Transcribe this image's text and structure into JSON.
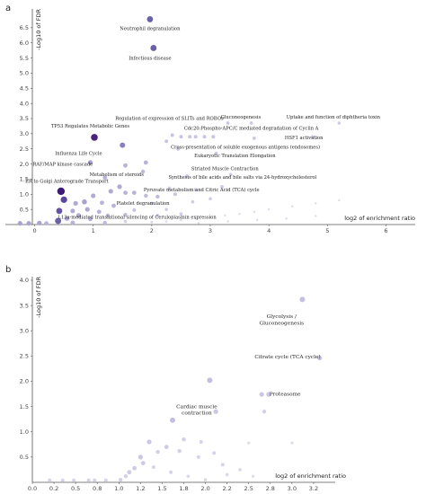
{
  "chart_data": [
    {
      "panel": "a",
      "type": "scatter",
      "ylabel": "-Log10 of FDR",
      "xlabel": "log2 of enrichment ratio",
      "xlim": [
        -0.5,
        6.5
      ],
      "ylim": [
        0,
        7.0
      ],
      "xticks": [
        "0",
        "1",
        "2",
        "3",
        "4",
        "5",
        "6"
      ],
      "yticks": [
        "0.5",
        "1.0",
        "1.5",
        "2.0",
        "2.5",
        "3.0",
        "3.5",
        "4.0",
        "4.5",
        "5.0",
        "5.5",
        "6.0",
        "6.5"
      ],
      "annotations": [
        {
          "text": "Neutrophil degranulation",
          "x": 1.97,
          "y": 6.42
        },
        {
          "text": "Infectious disease",
          "x": 1.97,
          "y": 5.45
        },
        {
          "text": "Regulation of expression of SLITs and ROBOs",
          "x": 2.3,
          "y": 3.45
        },
        {
          "text": "Gluconeogenesis",
          "x": 3.52,
          "y": 3.5
        },
        {
          "text": "Uptake and function of diphtheria toxin",
          "x": 5.1,
          "y": 3.5
        },
        {
          "text": "TP53 Regulates Metabolic Genes",
          "x": 0.95,
          "y": 3.2
        },
        {
          "text": "Cdc20:Phospho-APC/C mediated degradation of Cyclin A",
          "x": 3.7,
          "y": 3.13
        },
        {
          "text": "HSF1 activation",
          "x": 4.6,
          "y": 2.82
        },
        {
          "text": "Influenza Life Cycle",
          "x": 0.75,
          "y": 2.3
        },
        {
          "text": "Cross-presentation of soluble exogenous antigens (endosomes)",
          "x": 3.6,
          "y": 2.5
        },
        {
          "text": "Eukaryotic Translation Elongation",
          "x": 3.42,
          "y": 2.22
        },
        {
          "text": "RAF/MAP kinase cascade",
          "x": 0.48,
          "y": 1.95
        },
        {
          "text": "Striated Muscle Contraction",
          "x": 3.25,
          "y": 1.8
        },
        {
          "text": "Metabolism of steroids",
          "x": 1.4,
          "y": 1.6
        },
        {
          "text": "Synthesis of bile acids and bile salts via 24-hydroxycholesterol",
          "x": 3.55,
          "y": 1.52
        },
        {
          "text": "ER to Golgi Anterograde Transport",
          "x": 0.55,
          "y": 1.38
        },
        {
          "text": "Pyruvate metabolism and Citric Acid (TCA) cycle",
          "x": 2.85,
          "y": 1.1
        },
        {
          "text": "Platelet degranulation",
          "x": 1.85,
          "y": 0.65
        },
        {
          "text": "L13a-mediated translational silencing of Ceruloplasmin expression",
          "x": 1.75,
          "y": 0.2
        }
      ],
      "points": [
        {
          "x": 1.97,
          "y": 6.78,
          "r": 3.4,
          "c": "#6a62a8"
        },
        {
          "x": 2.03,
          "y": 5.83,
          "r": 3.4,
          "c": "#6a62a8"
        },
        {
          "x": 1.02,
          "y": 2.88,
          "r": 3.8,
          "c": "#4a237c"
        },
        {
          "x": 1.5,
          "y": 2.62,
          "r": 3.0,
          "c": "#8a80bd"
        },
        {
          "x": 0.45,
          "y": 1.1,
          "r": 4.2,
          "c": "#3c1c73"
        },
        {
          "x": 0.5,
          "y": 0.82,
          "r": 3.6,
          "c": "#5b4799"
        },
        {
          "x": 0.42,
          "y": 0.45,
          "r": 3.4,
          "c": "#6652a4"
        },
        {
          "x": 0.4,
          "y": 0.12,
          "r": 3.4,
          "c": "#6a62a8"
        },
        {
          "x": 0.08,
          "y": 0.05,
          "r": 2.6,
          "c": "#aaa4d0"
        },
        {
          "x": 0.95,
          "y": 2.05,
          "r": 2.6,
          "c": "#aaa4d0"
        },
        {
          "x": 1.55,
          "y": 1.95,
          "r": 2.4,
          "c": "#b8b3d8"
        },
        {
          "x": 1.9,
          "y": 2.05,
          "r": 2.4,
          "c": "#b8b3d8"
        },
        {
          "x": 1.85,
          "y": 1.75,
          "r": 2.2,
          "c": "#c0bbdc"
        },
        {
          "x": 1.2,
          "y": 1.55,
          "r": 2.4,
          "c": "#b8b3d8"
        },
        {
          "x": 1.45,
          "y": 1.25,
          "r": 2.6,
          "c": "#b0aad4"
        },
        {
          "x": 1.3,
          "y": 1.1,
          "r": 2.6,
          "c": "#b0aad4"
        },
        {
          "x": 1.55,
          "y": 1.05,
          "r": 2.4,
          "c": "#b8b3d8"
        },
        {
          "x": 1.7,
          "y": 1.05,
          "r": 2.4,
          "c": "#b8b3d8"
        },
        {
          "x": 1.9,
          "y": 0.95,
          "r": 2.2,
          "c": "#c0bbdc"
        },
        {
          "x": 2.1,
          "y": 0.92,
          "r": 2.2,
          "c": "#c0bbdc"
        },
        {
          "x": 2.4,
          "y": 1.0,
          "r": 2.0,
          "c": "#c8c4e2"
        },
        {
          "x": 1.0,
          "y": 0.95,
          "r": 2.6,
          "c": "#b0aad4"
        },
        {
          "x": 0.85,
          "y": 0.75,
          "r": 2.8,
          "c": "#a8a2cf"
        },
        {
          "x": 0.7,
          "y": 0.7,
          "r": 2.6,
          "c": "#b0aad4"
        },
        {
          "x": 1.15,
          "y": 0.72,
          "r": 2.4,
          "c": "#b8b3d8"
        },
        {
          "x": 1.35,
          "y": 0.62,
          "r": 2.4,
          "c": "#b8b3d8"
        },
        {
          "x": 0.9,
          "y": 0.5,
          "r": 2.6,
          "c": "#b0aad4"
        },
        {
          "x": 0.65,
          "y": 0.45,
          "r": 2.6,
          "c": "#b0aad4"
        },
        {
          "x": 1.1,
          "y": 0.42,
          "r": 2.4,
          "c": "#b8b3d8"
        },
        {
          "x": 0.75,
          "y": 0.3,
          "r": 2.6,
          "c": "#b0aad4"
        },
        {
          "x": 1.25,
          "y": 0.3,
          "r": 2.2,
          "c": "#c0bbdc"
        },
        {
          "x": 1.55,
          "y": 0.32,
          "r": 2.2,
          "c": "#c0bbdc"
        },
        {
          "x": 0.55,
          "y": 0.2,
          "r": 2.6,
          "c": "#b0aad4"
        },
        {
          "x": 0.95,
          "y": 0.18,
          "r": 2.4,
          "c": "#b8b3d8"
        },
        {
          "x": -0.25,
          "y": 0.04,
          "r": 2.6,
          "c": "#aaa4d0"
        },
        {
          "x": -0.1,
          "y": 0.04,
          "r": 2.6,
          "c": "#aaa4d0"
        },
        {
          "x": 0.2,
          "y": 0.04,
          "r": 2.4,
          "c": "#b8b3d8"
        },
        {
          "x": 0.65,
          "y": 0.06,
          "r": 2.4,
          "c": "#b8b3d8"
        },
        {
          "x": 1.2,
          "y": 0.06,
          "r": 2.2,
          "c": "#c0bbdc"
        },
        {
          "x": 2.25,
          "y": 2.75,
          "r": 2.0,
          "c": "#c8c4e2"
        },
        {
          "x": 2.35,
          "y": 2.95,
          "r": 2.0,
          "c": "#c8c4e2"
        },
        {
          "x": 2.5,
          "y": 2.9,
          "r": 2.0,
          "c": "#c8c4e2"
        },
        {
          "x": 2.65,
          "y": 2.9,
          "r": 2.0,
          "c": "#c8c4e2"
        },
        {
          "x": 2.75,
          "y": 2.9,
          "r": 2.0,
          "c": "#c8c4e2"
        },
        {
          "x": 2.9,
          "y": 2.9,
          "r": 2.0,
          "c": "#c8c4e2"
        },
        {
          "x": 3.05,
          "y": 2.9,
          "r": 2.0,
          "c": "#c8c4e2"
        },
        {
          "x": 3.3,
          "y": 3.35,
          "r": 1.9,
          "c": "#ccc8e4"
        },
        {
          "x": 3.7,
          "y": 3.35,
          "r": 1.9,
          "c": "#ccc8e4"
        },
        {
          "x": 5.2,
          "y": 3.35,
          "r": 1.8,
          "c": "#d0cce6"
        },
        {
          "x": 4.75,
          "y": 2.9,
          "r": 1.8,
          "c": "#d0cce6"
        },
        {
          "x": 3.75,
          "y": 2.85,
          "r": 1.9,
          "c": "#ccc8e4"
        },
        {
          "x": 2.45,
          "y": 2.5,
          "r": 2.0,
          "c": "#c8c4e2"
        },
        {
          "x": 3.1,
          "y": 2.35,
          "r": 1.9,
          "c": "#ccc8e4"
        },
        {
          "x": 3.35,
          "y": 1.65,
          "r": 1.9,
          "c": "#ccc8e4"
        },
        {
          "x": 2.6,
          "y": 1.6,
          "r": 1.9,
          "c": "#ccc8e4"
        },
        {
          "x": 2.3,
          "y": 1.2,
          "r": 1.9,
          "c": "#ccc8e4"
        },
        {
          "x": 2.75,
          "y": 1.15,
          "r": 1.9,
          "c": "#ccc8e4"
        },
        {
          "x": 3.2,
          "y": 1.25,
          "r": 1.9,
          "c": "#ccc8e4"
        },
        {
          "x": 2.0,
          "y": 0.7,
          "r": 1.9,
          "c": "#ccc8e4"
        },
        {
          "x": 2.7,
          "y": 0.75,
          "r": 1.8,
          "c": "#d0cce6"
        },
        {
          "x": 3.0,
          "y": 0.85,
          "r": 1.8,
          "c": "#d0cce6"
        },
        {
          "x": 2.25,
          "y": 0.5,
          "r": 1.8,
          "c": "#d0cce6"
        },
        {
          "x": 1.7,
          "y": 0.48,
          "r": 2.0,
          "c": "#c8c4e2"
        },
        {
          "x": 2.1,
          "y": 0.3,
          "r": 1.8,
          "c": "#d0cce6"
        },
        {
          "x": 2.5,
          "y": 0.35,
          "r": 1.8,
          "c": "#d0cce6"
        },
        {
          "x": 1.55,
          "y": 0.1,
          "r": 1.8,
          "c": "#d0cce6"
        },
        {
          "x": 2.0,
          "y": 0.08,
          "r": 1.5,
          "c": "#d8d5ea"
        },
        {
          "x": 2.25,
          "y": 0.1,
          "r": 1.3,
          "c": "#dcd9ec"
        },
        {
          "x": 2.5,
          "y": 0.15,
          "r": 1.3,
          "c": "#dcd9ec"
        },
        {
          "x": 2.75,
          "y": 0.2,
          "r": 1.2,
          "c": "#dcd9ec"
        },
        {
          "x": 3.0,
          "y": 0.25,
          "r": 1.2,
          "c": "#dcd9ec"
        },
        {
          "x": 3.25,
          "y": 0.3,
          "r": 1.2,
          "c": "#dcd9ec"
        },
        {
          "x": 3.5,
          "y": 0.35,
          "r": 1.2,
          "c": "#dcd9ec"
        },
        {
          "x": 3.75,
          "y": 0.42,
          "r": 1.2,
          "c": "#dcd9ec"
        },
        {
          "x": 4.0,
          "y": 0.5,
          "r": 1.2,
          "c": "#dcd9ec"
        },
        {
          "x": 4.4,
          "y": 0.6,
          "r": 1.2,
          "c": "#dcd9ec"
        },
        {
          "x": 4.8,
          "y": 0.7,
          "r": 1.2,
          "c": "#dcd9ec"
        },
        {
          "x": 5.2,
          "y": 0.8,
          "r": 1.2,
          "c": "#dcd9ec"
        },
        {
          "x": 2.8,
          "y": 0.05,
          "r": 1.2,
          "c": "#dcd9ec"
        },
        {
          "x": 3.3,
          "y": 0.1,
          "r": 1.2,
          "c": "#dcd9ec"
        },
        {
          "x": 3.8,
          "y": 0.15,
          "r": 1.2,
          "c": "#dcd9ec"
        },
        {
          "x": 4.3,
          "y": 0.2,
          "r": 1.2,
          "c": "#dcd9ec"
        },
        {
          "x": 4.8,
          "y": 0.28,
          "r": 1.2,
          "c": "#dcd9ec"
        }
      ]
    },
    {
      "panel": "b",
      "type": "scatter",
      "ylabel": "-Log10 of FDR",
      "xlabel": "log2 of enrichment ratio",
      "xlim": [
        0.0,
        3.5
      ],
      "ylim": [
        0,
        4.0
      ],
      "xticks": [
        "0.0",
        "0.2",
        "0.5",
        "0.8",
        "1.0",
        "1.2",
        "1.5",
        "1.8",
        "2.0",
        "2.2",
        "2.5",
        "2.8",
        "3.0",
        "3.2"
      ],
      "yticks": [
        "0.5",
        "1.0",
        "1.5",
        "2.0",
        "2.5",
        "3.0",
        "3.5",
        "4.0"
      ],
      "annotations": [
        {
          "text": "Glycolysis /",
          "x": 2.88,
          "y": 3.25
        },
        {
          "text": "Gluconeogenesis",
          "x": 2.88,
          "y": 3.12
        },
        {
          "text": "Citrate cycle (TCA cycle)",
          "x": 2.95,
          "y": 2.45
        },
        {
          "text": "Proteasome",
          "x": 2.92,
          "y": 1.72
        },
        {
          "text": "Cardiac muscle",
          "x": 1.9,
          "y": 1.47
        },
        {
          "text": "contraction",
          "x": 1.9,
          "y": 1.34
        }
      ],
      "points": [
        {
          "x": 3.12,
          "y": 3.62,
          "r": 3.0,
          "c": "#c3bfe0"
        },
        {
          "x": 3.32,
          "y": 2.46,
          "r": 2.6,
          "c": "#cbc7e4"
        },
        {
          "x": 2.05,
          "y": 2.02,
          "r": 3.0,
          "c": "#c3bfe0"
        },
        {
          "x": 2.65,
          "y": 1.74,
          "r": 2.6,
          "c": "#cbc7e4"
        },
        {
          "x": 2.73,
          "y": 1.74,
          "r": 2.6,
          "c": "#cbc7e4"
        },
        {
          "x": 2.68,
          "y": 1.4,
          "r": 2.2,
          "c": "#d2cfe8"
        },
        {
          "x": 2.12,
          "y": 1.4,
          "r": 2.6,
          "c": "#cbc7e4"
        },
        {
          "x": 1.62,
          "y": 1.23,
          "r": 3.0,
          "c": "#c3bfe0"
        },
        {
          "x": 1.35,
          "y": 0.8,
          "r": 2.6,
          "c": "#cbc7e4"
        },
        {
          "x": 1.75,
          "y": 0.85,
          "r": 2.2,
          "c": "#d2cfe8"
        },
        {
          "x": 1.55,
          "y": 0.7,
          "r": 2.4,
          "c": "#cfcbe6"
        },
        {
          "x": 1.45,
          "y": 0.6,
          "r": 2.2,
          "c": "#d2cfe8"
        },
        {
          "x": 1.7,
          "y": 0.62,
          "r": 2.2,
          "c": "#d2cfe8"
        },
        {
          "x": 1.25,
          "y": 0.5,
          "r": 2.6,
          "c": "#cbc7e4"
        },
        {
          "x": 1.28,
          "y": 0.38,
          "r": 2.4,
          "c": "#cfcbe6"
        },
        {
          "x": 1.18,
          "y": 0.28,
          "r": 2.4,
          "c": "#cfcbe6"
        },
        {
          "x": 1.12,
          "y": 0.2,
          "r": 2.4,
          "c": "#cfcbe6"
        },
        {
          "x": 1.08,
          "y": 0.12,
          "r": 2.2,
          "c": "#d2cfe8"
        },
        {
          "x": 1.02,
          "y": 0.05,
          "r": 2.2,
          "c": "#d2cfe8"
        },
        {
          "x": 0.85,
          "y": 0.04,
          "r": 2.0,
          "c": "#d6d3ea"
        },
        {
          "x": 0.65,
          "y": 0.04,
          "r": 2.0,
          "c": "#d6d3ea"
        },
        {
          "x": 0.35,
          "y": 0.04,
          "r": 2.0,
          "c": "#d6d3ea"
        },
        {
          "x": 0.2,
          "y": 0.04,
          "r": 2.0,
          "c": "#d6d3ea"
        },
        {
          "x": 0.48,
          "y": 0.04,
          "r": 2.0,
          "c": "#d6d3ea"
        },
        {
          "x": 0.72,
          "y": 0.04,
          "r": 2.0,
          "c": "#d6d3ea"
        },
        {
          "x": 1.95,
          "y": 0.8,
          "r": 2.0,
          "c": "#d6d3ea"
        },
        {
          "x": 1.92,
          "y": 0.5,
          "r": 2.0,
          "c": "#d6d3ea"
        },
        {
          "x": 2.1,
          "y": 0.58,
          "r": 2.0,
          "c": "#d6d3ea"
        },
        {
          "x": 2.2,
          "y": 0.35,
          "r": 2.0,
          "c": "#d6d3ea"
        },
        {
          "x": 2.4,
          "y": 0.25,
          "r": 1.8,
          "c": "#dad7ec"
        },
        {
          "x": 2.25,
          "y": 0.15,
          "r": 1.8,
          "c": "#dad7ec"
        },
        {
          "x": 2.55,
          "y": 0.12,
          "r": 1.6,
          "c": "#dedbee"
        },
        {
          "x": 2.5,
          "y": 0.78,
          "r": 1.6,
          "c": "#dedbee"
        },
        {
          "x": 3.0,
          "y": 0.78,
          "r": 1.6,
          "c": "#dedbee"
        },
        {
          "x": 1.4,
          "y": 0.3,
          "r": 2.0,
          "c": "#d6d3ea"
        },
        {
          "x": 1.6,
          "y": 0.2,
          "r": 2.0,
          "c": "#d6d3ea"
        },
        {
          "x": 1.8,
          "y": 0.12,
          "r": 1.8,
          "c": "#dad7ec"
        },
        {
          "x": 2.0,
          "y": 0.05,
          "r": 1.8,
          "c": "#dad7ec"
        }
      ]
    }
  ]
}
